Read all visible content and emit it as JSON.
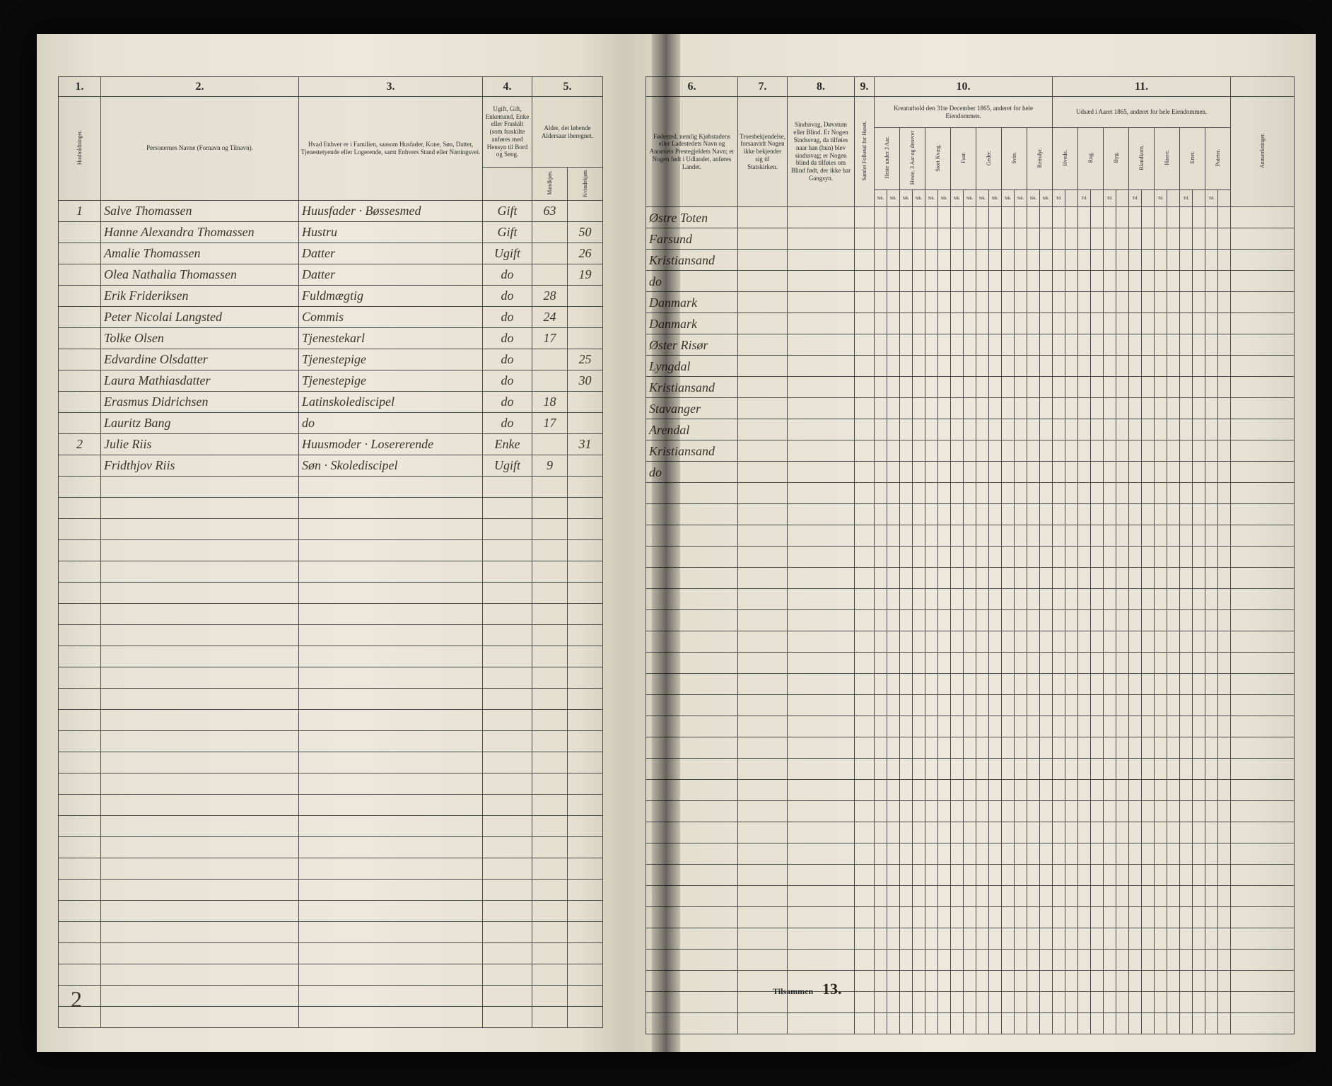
{
  "left": {
    "columns": [
      "1.",
      "2.",
      "3.",
      "4.",
      "5."
    ],
    "headers": {
      "c1": "Husholdninger.",
      "c2": "Personernes Navne (Fornavn og Tilnavn).",
      "c3": "Hvad Enhver er i Familien, saasom Husfader, Kone, Søn, Datter, Tjenestetyende eller Logerende, samt Enhvers Stand eller Næringsvei.",
      "c4": "Ugift, Gift, Enkemand, Enke eller Fraskilt (som fraskilte anføres med Hensyn til Bord og Seng.",
      "c5": "Alder, det løbende Aldersaar iberegnet.",
      "c4a": "",
      "c5a": "Mandkjøn.",
      "c5b": "Kvindekjøn."
    }
  },
  "right": {
    "columns": [
      "6.",
      "7.",
      "8.",
      "9.",
      "10.",
      "11."
    ],
    "headers": {
      "c6": "Fødested, nemlig Kjøbstadens eller Ladestedets Navn og Annexets Prestegjeldets Navn; er Nogen født i Udlandet, anføres Landet.",
      "c7": "Troesbekjendelse, forsaavidt Nogen ikke bekjender sig til Statskirken.",
      "c8": "Sindssvag, Døvstum eller Blind. Er Nogen Sindssvag, da tilføies naar han (hun) blev sindssvag; er Nogen blind da tilføies om Blind født, der ikke har Gangsyn.",
      "c9a": "Samlet Folketal for Huset.",
      "c10": "Kreaturhold den 31te December 1865, anderet for hele Eiendommen.",
      "c11": "Udsæd i Aaret 1865, anderet for hele Eiendommen.",
      "c12": "Anmærkninger."
    },
    "sub10": [
      "Heste under 3 Aar.",
      "Heste, 3 Aar og derover",
      "Stort Kvæg.",
      "Faar.",
      "Geder.",
      "Svin.",
      "Rensdyr."
    ],
    "sub11": [
      "Hvede.",
      "Rug.",
      "Byg.",
      "Blandkorn.",
      "Havre.",
      "Erter.",
      "Poteter."
    ],
    "footer": "Tilsammen",
    "footer_total": "13."
  },
  "rows": [
    {
      "hh": "1",
      "name": "Salve Thomassen",
      "role": "Huusfader · Bøssesmed",
      "status": "Gift",
      "age_m": "63",
      "age_f": "",
      "birthplace": "Østre Toten"
    },
    {
      "hh": "",
      "name": "Hanne Alexandra Thomassen",
      "role": "Hustru",
      "status": "Gift",
      "age_m": "",
      "age_f": "50",
      "birthplace": "Farsund"
    },
    {
      "hh": "",
      "name": "Amalie Thomassen",
      "role": "Datter",
      "status": "Ugift",
      "age_m": "",
      "age_f": "26",
      "birthplace": "Kristiansand"
    },
    {
      "hh": "",
      "name": "Olea Nathalia Thomassen",
      "role": "Datter",
      "status": "do",
      "age_m": "",
      "age_f": "19",
      "birthplace": "do"
    },
    {
      "hh": "",
      "name": "Erik Frideriksen",
      "role": "Fuldmægtig",
      "status": "do",
      "age_m": "28",
      "age_f": "",
      "birthplace": "Danmark"
    },
    {
      "hh": "",
      "name": "Peter Nicolai Langsted",
      "role": "Commis",
      "status": "do",
      "age_m": "24",
      "age_f": "",
      "birthplace": "Danmark"
    },
    {
      "hh": "",
      "name": "Tolke Olsen",
      "role": "Tjenestekarl",
      "status": "do",
      "age_m": "17",
      "age_f": "",
      "birthplace": "Øster Risør"
    },
    {
      "hh": "",
      "name": "Edvardine Olsdatter",
      "role": "Tjenestepige",
      "status": "do",
      "age_m": "",
      "age_f": "25",
      "birthplace": "Lyngdal"
    },
    {
      "hh": "",
      "name": "Laura Mathiasdatter",
      "role": "Tjenestepige",
      "status": "do",
      "age_m": "",
      "age_f": "30",
      "birthplace": "Kristiansand"
    },
    {
      "hh": "",
      "name": "Erasmus Didrichsen",
      "role": "Latinskolediscipel",
      "status": "do",
      "age_m": "18",
      "age_f": "",
      "birthplace": "Stavanger"
    },
    {
      "hh": "",
      "name": "Lauritz Bang",
      "role": "do",
      "status": "do",
      "age_m": "17",
      "age_f": "",
      "birthplace": "Arendal"
    },
    {
      "hh": "2",
      "name": "Julie Riis",
      "role": "Huusmoder · Losererende",
      "status": "Enke",
      "age_m": "",
      "age_f": "31",
      "birthplace": "Kristiansand"
    },
    {
      "hh": "",
      "name": "Fridthjov Riis",
      "role": "Søn · Skolediscipel",
      "status": "Ugift",
      "age_m": "9",
      "age_f": "",
      "birthplace": "do"
    }
  ],
  "page_number_left": "2",
  "blank_rows": 26,
  "colors": {
    "ink": "#3a3328",
    "rule": "#4a4a4a",
    "paper": "#ece8dc"
  }
}
